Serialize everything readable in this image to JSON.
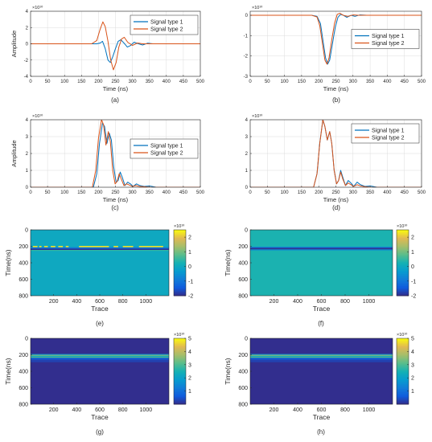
{
  "chart_data": [
    {
      "type": "line",
      "panel_label": "(a)",
      "xlabel": "Time (ns)",
      "ylabel": "Amplitude",
      "exponent": "×10¹⁰",
      "xlim": [
        0,
        500
      ],
      "ylim": [
        -4,
        4
      ],
      "xticks": [
        0,
        50,
        100,
        150,
        200,
        250,
        300,
        350,
        400,
        450,
        500
      ],
      "yticks": [
        -4,
        -2,
        0,
        2,
        4
      ],
      "legend_position": "top-right",
      "series": [
        {
          "name": "Signal type 1",
          "color": "#0072BD",
          "x": [
            0,
            195,
            205,
            212,
            220,
            228,
            235,
            242,
            250,
            258,
            266,
            275,
            285,
            295,
            305,
            318,
            330,
            345,
            360,
            380,
            500
          ],
          "y": [
            0,
            0,
            0.1,
            0.3,
            -0.6,
            -2.0,
            -2.3,
            -1.6,
            -0.6,
            0.3,
            0.5,
            0.1,
            -0.4,
            -0.2,
            0.2,
            0,
            -0.15,
            0.08,
            0,
            0,
            0
          ]
        },
        {
          "name": "Signal type 2",
          "color": "#D95319",
          "x": [
            0,
            180,
            195,
            205,
            213,
            220,
            228,
            236,
            244,
            252,
            260,
            268,
            276,
            286,
            300,
            315,
            330,
            350,
            500
          ],
          "y": [
            0,
            0,
            0.4,
            1.8,
            2.7,
            2.1,
            0.3,
            -2.0,
            -3.2,
            -2.3,
            -0.4,
            0.6,
            0.8,
            0.2,
            -0.2,
            0.1,
            0,
            0,
            0
          ]
        }
      ]
    },
    {
      "type": "line",
      "panel_label": "(b)",
      "xlabel": "Time (ns)",
      "ylabel": "",
      "exponent": "×10¹⁰",
      "xlim": [
        0,
        500
      ],
      "ylim": [
        -3,
        0.2
      ],
      "xticks": [
        0,
        50,
        100,
        150,
        200,
        250,
        300,
        350,
        400,
        450,
        500
      ],
      "yticks": [
        -3,
        -2,
        -1,
        0
      ],
      "legend_position": "right",
      "series": [
        {
          "name": "Signal type 1",
          "color": "#0072BD",
          "x": [
            0,
            180,
            195,
            205,
            212,
            220,
            226,
            232,
            240,
            248,
            256,
            264,
            272,
            282,
            294,
            306,
            320,
            340,
            360,
            500
          ],
          "y": [
            0,
            0,
            -0.05,
            -0.4,
            -1.2,
            -2.1,
            -2.4,
            -2.2,
            -1.4,
            -0.6,
            -0.1,
            0.05,
            0,
            -0.1,
            0,
            -0.05,
            0.02,
            0,
            0,
            0
          ]
        },
        {
          "name": "Signal type 2",
          "color": "#D95319",
          "x": [
            0,
            180,
            195,
            203,
            210,
            218,
            224,
            230,
            238,
            246,
            254,
            262,
            272,
            285,
            300,
            315,
            330,
            500
          ],
          "y": [
            0,
            0,
            -0.08,
            -0.5,
            -1.3,
            -2.2,
            -2.4,
            -2.1,
            -1.2,
            -0.4,
            0.05,
            0.1,
            0,
            -0.05,
            0.02,
            0,
            0,
            0
          ]
        }
      ]
    },
    {
      "type": "line",
      "panel_label": "(c)",
      "xlabel": "Time (ns)",
      "ylabel": "Amplitude",
      "exponent": "×10¹⁰",
      "xlim": [
        0,
        500
      ],
      "ylim": [
        0,
        4
      ],
      "xticks": [
        0,
        50,
        100,
        150,
        200,
        250,
        300,
        350,
        400,
        450,
        500
      ],
      "yticks": [
        0,
        1,
        2,
        3,
        4
      ],
      "legend_position": "right",
      "series": [
        {
          "name": "Signal type 1",
          "color": "#0072BD",
          "x": [
            0,
            185,
            195,
            203,
            212,
            218,
            225,
            232,
            238,
            245,
            252,
            258,
            264,
            270,
            278,
            286,
            294,
            302,
            312,
            322,
            335,
            350,
            370,
            500
          ],
          "y": [
            0,
            0,
            0.8,
            2.6,
            3.8,
            3.6,
            2.6,
            3.2,
            2.8,
            1.2,
            0.3,
            0.4,
            0.9,
            0.6,
            0.1,
            0.3,
            0.2,
            0.05,
            0.2,
            0.1,
            0.05,
            0.08,
            0,
            0
          ]
        },
        {
          "name": "Signal type 2",
          "color": "#D95319",
          "x": [
            0,
            182,
            192,
            200,
            209,
            215,
            222,
            229,
            235,
            242,
            249,
            255,
            261,
            267,
            275,
            283,
            292,
            300,
            310,
            320,
            335,
            350,
            500
          ],
          "y": [
            0,
            0,
            1.0,
            2.9,
            4.0,
            3.7,
            2.5,
            3.3,
            2.7,
            1.0,
            0.2,
            0.35,
            0.8,
            0.5,
            0.1,
            0.2,
            0.12,
            0.05,
            0.1,
            0.05,
            0.03,
            0,
            0
          ]
        }
      ]
    },
    {
      "type": "line",
      "panel_label": "(d)",
      "xlabel": "Time (ns)",
      "ylabel": "",
      "exponent": "×10¹⁰",
      "xlim": [
        0,
        500
      ],
      "ylim": [
        0,
        4
      ],
      "xticks": [
        0,
        50,
        100,
        150,
        200,
        250,
        300,
        350,
        400,
        450,
        500
      ],
      "yticks": [
        0,
        1,
        2,
        3,
        4
      ],
      "legend_position": "top-right",
      "series": [
        {
          "name": "Signal type 1",
          "color": "#0072BD",
          "x": [
            0,
            185,
            195,
            203,
            212,
            218,
            225,
            232,
            238,
            245,
            252,
            258,
            264,
            270,
            278,
            286,
            294,
            302,
            312,
            322,
            335,
            350,
            370,
            500
          ],
          "y": [
            0,
            0,
            0.8,
            2.6,
            4.0,
            3.6,
            2.8,
            3.3,
            2.6,
            1.0,
            0.2,
            0.4,
            1.0,
            0.6,
            0.1,
            0.4,
            0.25,
            0.05,
            0.3,
            0.15,
            0.05,
            0.08,
            0,
            0
          ]
        },
        {
          "name": "Signal type 2",
          "color": "#D95319",
          "x": [
            0,
            185,
            195,
            203,
            212,
            218,
            225,
            232,
            238,
            245,
            252,
            258,
            264,
            270,
            278,
            286,
            294,
            302,
            312,
            322,
            335,
            350,
            500
          ],
          "y": [
            0,
            0,
            0.8,
            2.6,
            4.0,
            3.6,
            2.8,
            3.3,
            2.6,
            1.0,
            0.2,
            0.4,
            0.9,
            0.5,
            0.1,
            0.25,
            0.15,
            0.05,
            0.15,
            0.08,
            0.03,
            0,
            0
          ]
        }
      ]
    },
    {
      "type": "heatmap",
      "panel_label": "(e)",
      "xlabel": "Trace",
      "ylabel": "Time(ns)",
      "exponent": "×10¹⁰",
      "xlim": [
        0,
        1200
      ],
      "ylim": [
        800,
        0
      ],
      "xticks": [
        200,
        400,
        600,
        800,
        1000
      ],
      "yticks": [
        0,
        200,
        400,
        600,
        800
      ],
      "colorbar_ticks": [
        -2,
        -1,
        0,
        1,
        2
      ],
      "clim": [
        -2,
        2.5
      ],
      "background_value": 0,
      "bands": [
        {
          "t0": 195,
          "t1": 212,
          "value": 2.3,
          "segments": [
            [
              20,
              60
            ],
            [
              75,
              95
            ],
            [
              118,
              150
            ],
            [
              175,
              215
            ],
            [
              240,
              280
            ],
            [
              305,
              330
            ],
            [
              420,
              680
            ],
            [
              720,
              760
            ],
            [
              800,
              890
            ],
            [
              940,
              1150
            ]
          ]
        },
        {
          "t0": 212,
          "t1": 228,
          "value": -1.0,
          "segments": [
            [
              0,
              1200
            ]
          ]
        },
        {
          "t0": 228,
          "t1": 244,
          "value": -1.9,
          "segments": [
            [
              0,
              1200
            ]
          ]
        },
        {
          "t0": 244,
          "t1": 256,
          "value": 0.5,
          "segments": [
            [
              0,
              1200
            ]
          ]
        }
      ]
    },
    {
      "type": "heatmap",
      "panel_label": "(f)",
      "xlabel": "Trace",
      "ylabel": "Time(ns)",
      "exponent": "×10¹⁰",
      "xlim": [
        0,
        1200
      ],
      "ylim": [
        800,
        0
      ],
      "xticks": [
        200,
        400,
        600,
        800,
        1000
      ],
      "yticks": [
        0,
        200,
        400,
        600,
        800
      ],
      "colorbar_ticks": [
        -2,
        -1,
        0,
        1,
        2
      ],
      "clim": [
        -2,
        2.5
      ],
      "background_value": 0.3,
      "bands": [
        {
          "t0": 205,
          "t1": 218,
          "value": -0.8,
          "segments": [
            [
              0,
              1200
            ]
          ]
        },
        {
          "t0": 218,
          "t1": 238,
          "value": -1.9,
          "segments": [
            [
              0,
              1200
            ]
          ]
        },
        {
          "t0": 238,
          "t1": 250,
          "value": -0.6,
          "segments": [
            [
              0,
              1200
            ]
          ]
        }
      ]
    },
    {
      "type": "heatmap",
      "panel_label": "(g)",
      "xlabel": "Trace",
      "ylabel": "Time(ns)",
      "exponent": "×10¹⁰",
      "xlim": [
        0,
        1200
      ],
      "ylim": [
        800,
        0
      ],
      "xticks": [
        200,
        400,
        600,
        800,
        1000
      ],
      "yticks": [
        0,
        200,
        400,
        600,
        800
      ],
      "colorbar_ticks": [
        1,
        2,
        3,
        4,
        5
      ],
      "clim": [
        0,
        5
      ],
      "background_value": 0.05,
      "bands": [
        {
          "t0": 190,
          "t1": 200,
          "value": 1.5,
          "segments": [
            [
              0,
              1200
            ]
          ]
        },
        {
          "t0": 200,
          "t1": 214,
          "value": 3.3,
          "segments": [
            [
              0,
              1200
            ]
          ]
        },
        {
          "t0": 214,
          "t1": 224,
          "value": 2.2,
          "segments": [
            [
              0,
              1200
            ]
          ]
        },
        {
          "t0": 224,
          "t1": 236,
          "value": 3.0,
          "segments": [
            [
              0,
              1200
            ]
          ]
        },
        {
          "t0": 236,
          "t1": 252,
          "value": 0.9,
          "segments": [
            [
              0,
              1200
            ]
          ]
        },
        {
          "t0": 252,
          "t1": 262,
          "value": 0.5,
          "segments": [
            [
              0,
              1200
            ]
          ]
        },
        {
          "t0": 262,
          "t1": 290,
          "value": 0.3,
          "segments": [
            [
              0,
              1200
            ]
          ]
        }
      ]
    },
    {
      "type": "heatmap",
      "panel_label": "(h)",
      "xlabel": "Trace",
      "ylabel": "Time(ns)",
      "exponent": "×10¹⁰",
      "xlim": [
        0,
        1200
      ],
      "ylim": [
        800,
        0
      ],
      "xticks": [
        200,
        400,
        600,
        800,
        1000
      ],
      "yticks": [
        0,
        200,
        400,
        600,
        800
      ],
      "colorbar_ticks": [
        1,
        2,
        3,
        4,
        5
      ],
      "clim": [
        0,
        5
      ],
      "background_value": 0.05,
      "bands": [
        {
          "t0": 190,
          "t1": 200,
          "value": 1.5,
          "segments": [
            [
              0,
              1200
            ]
          ]
        },
        {
          "t0": 200,
          "t1": 214,
          "value": 3.4,
          "segments": [
            [
              0,
              1200
            ]
          ]
        },
        {
          "t0": 214,
          "t1": 224,
          "value": 2.2,
          "segments": [
            [
              0,
              1200
            ]
          ]
        },
        {
          "t0": 224,
          "t1": 236,
          "value": 3.0,
          "segments": [
            [
              0,
              1200
            ]
          ]
        },
        {
          "t0": 236,
          "t1": 252,
          "value": 0.9,
          "segments": [
            [
              0,
              1200
            ]
          ]
        },
        {
          "t0": 252,
          "t1": 262,
          "value": 0.5,
          "segments": [
            [
              0,
              1200
            ]
          ]
        },
        {
          "t0": 262,
          "t1": 290,
          "value": 0.3,
          "segments": [
            [
              0,
              1200
            ]
          ]
        }
      ]
    }
  ]
}
